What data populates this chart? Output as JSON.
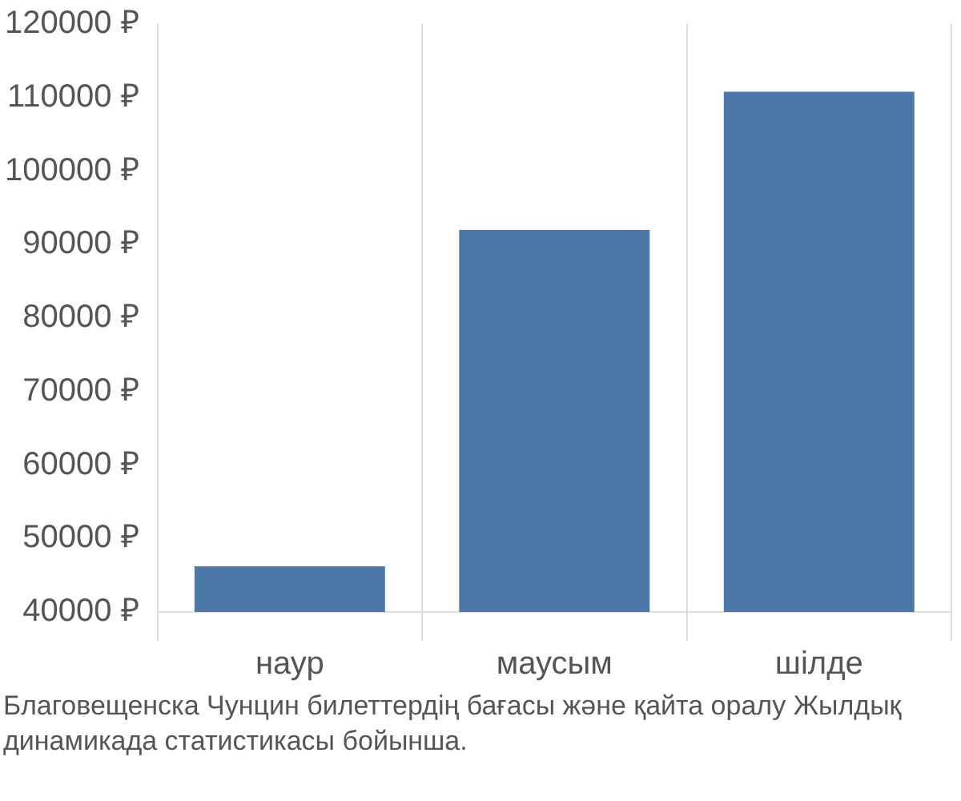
{
  "chart_data": {
    "type": "bar",
    "categories": [
      "наур",
      "маусым",
      "шілде"
    ],
    "values": [
      46200,
      92000,
      110800
    ],
    "color": "#4c78a8",
    "ylim": [
      40000,
      120000
    ],
    "yticks": [
      {
        "value": 40000,
        "label": "40000 ₽"
      },
      {
        "value": 50000,
        "label": "50000 ₽"
      },
      {
        "value": 60000,
        "label": "60000 ₽"
      },
      {
        "value": 70000,
        "label": "70000 ₽"
      },
      {
        "value": 80000,
        "label": "80000 ₽"
      },
      {
        "value": 90000,
        "label": "90000 ₽"
      },
      {
        "value": 100000,
        "label": "100000 ₽"
      },
      {
        "value": 110000,
        "label": "110000 ₽"
      },
      {
        "value": 120000,
        "label": "120000 ₽"
      }
    ],
    "grid": "x",
    "legend": false,
    "annotations": [
      "Благовещенска Чунцин билеттердің бағасы және қайта оралу Жылдық динамикада статистикасы бойынша."
    ]
  }
}
